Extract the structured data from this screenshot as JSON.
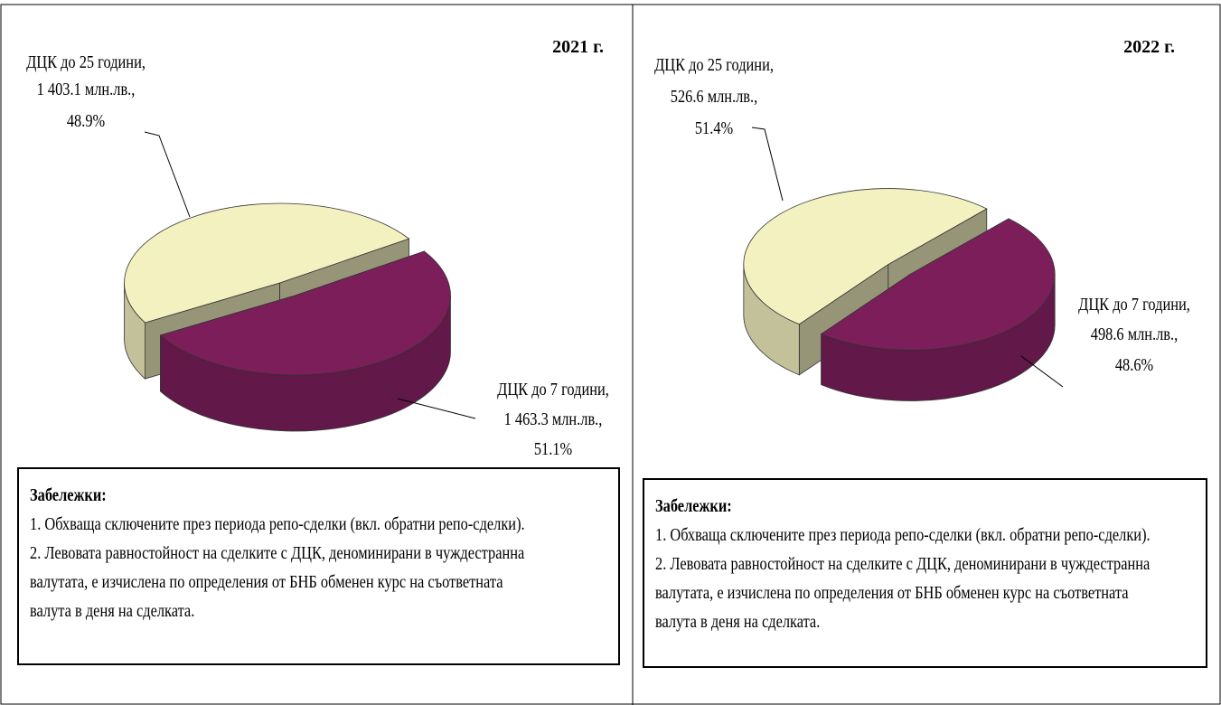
{
  "chart_data": [
    {
      "type": "pie3d",
      "title": "2021 г.",
      "categories": [
        "ДЦК до 25 години,",
        "ДЦК до 7 години,"
      ],
      "values": [
        1403.1,
        1463.3
      ],
      "value_labels": [
        "1 403.1 млн.лв.,",
        "1 463.3 млн.лв.,"
      ],
      "percents": [
        48.9,
        51.1
      ],
      "percent_labels": [
        "48.9%",
        "51.1%"
      ],
      "colors": [
        "#f4f1c1",
        "#7b1e5a"
      ],
      "notes_title": "Забележки:",
      "notes": [
        "1. Обхваща сключените през периода репо-сделки (вкл. обратни репо-сделки).",
        "2. Левовата равностойност на сделките с ДЦК, деноминирани в чуждестранна",
        "валутата, е изчислена по определения от БНБ обменен курс на съответната",
        "валута в деня на сделката."
      ]
    },
    {
      "type": "pie3d",
      "title": "2022 г.",
      "categories": [
        "ДЦК до 25 години,",
        "ДЦК до 7 години,"
      ],
      "values": [
        526.6,
        498.6
      ],
      "value_labels": [
        "526.6 млн.лв.,",
        "498.6 млн.лв.,"
      ],
      "percents": [
        51.4,
        48.6
      ],
      "percent_labels": [
        "51.4%",
        "48.6%"
      ],
      "colors": [
        "#f4f1c1",
        "#7b1e5a"
      ],
      "notes_title": "Забележки:",
      "notes": [
        "1. Обхваща сключените през периода репо-сделки (вкл. обратни репо-сделки).",
        "2. Левовата равностойност на сделките с ДЦК, деноминирани в чуждестранна",
        "валутата, е изчислена по определения от БНБ обменен курс на съответната",
        "валута в деня на сделката."
      ]
    }
  ]
}
